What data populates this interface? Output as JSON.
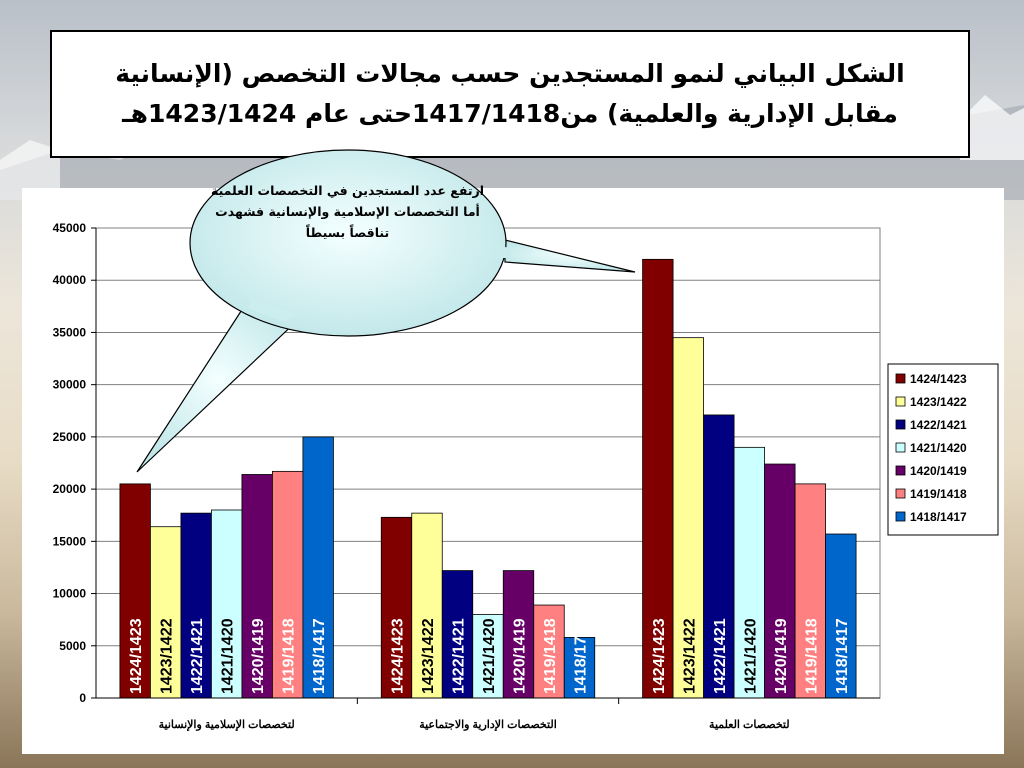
{
  "title": {
    "line1": "الشكل البياني لنمو المستجدين حسب مجالات التخصص (الإنسانية",
    "line2": "مقابل الإدارية والعلمية) من1417/1418حتى عام 1423/1424هـ"
  },
  "callout": {
    "text": "ارتفع عدد المستجدين في التخصصات العلمية أما التخصصات الإسلامية والإنسانية فشهدت تناقصاً بسيطاً"
  },
  "colors": {
    "1424/1423": "#800000",
    "1423/1422": "#ffff99",
    "1422/1421": "#000080",
    "1421/1420": "#ccffff",
    "1420/1419": "#660066",
    "1419/1418": "#ff8080",
    "1418/1417": "#0066cc"
  },
  "chart_data": {
    "type": "bar",
    "title": "",
    "xlabel": "",
    "ylabel": "",
    "ylim": [
      0,
      45000
    ],
    "yticks": [
      "0",
      "5000",
      "10000",
      "15000",
      "20000",
      "25000",
      "30000",
      "35000",
      "40000",
      "45000"
    ],
    "grid": true,
    "legend_position": "right",
    "categories": [
      "لتخصصات الإسلامية والإنسانية",
      "التخصصات الإدارية والاجتماعية",
      "لتخصصات العلمية"
    ],
    "series": [
      {
        "name": "1424/1423",
        "values": [
          20500,
          17300,
          42000
        ],
        "bar_labels": [
          "1424/1423",
          "1424/1423",
          "1424/1423"
        ]
      },
      {
        "name": "1423/1422",
        "values": [
          16400,
          17700,
          34500
        ],
        "bar_labels": [
          "1423/1422",
          "1423/1422",
          "1423/1422"
        ]
      },
      {
        "name": "1422/1421",
        "values": [
          17700,
          12200,
          27100
        ],
        "bar_labels": [
          "1422/1421",
          "1422/1421",
          "1422/1421"
        ]
      },
      {
        "name": "1421/1420",
        "values": [
          18000,
          8000,
          24000
        ],
        "bar_labels": [
          "1421/1420",
          "1421/1420",
          "1421/1420"
        ]
      },
      {
        "name": "1420/1419",
        "values": [
          21400,
          12200,
          22400
        ],
        "bar_labels": [
          "1420/1419",
          "1420/1419",
          "1420/1419"
        ]
      },
      {
        "name": "1419/1418",
        "values": [
          21700,
          8900,
          20500
        ],
        "bar_labels": [
          "1419/1418",
          "1419/1418",
          "1419/1418"
        ]
      },
      {
        "name": "1418/1417",
        "values": [
          25000,
          5800,
          15700
        ],
        "bar_labels": [
          "1418/1417",
          "1418/17",
          "1418/1417"
        ]
      }
    ]
  }
}
